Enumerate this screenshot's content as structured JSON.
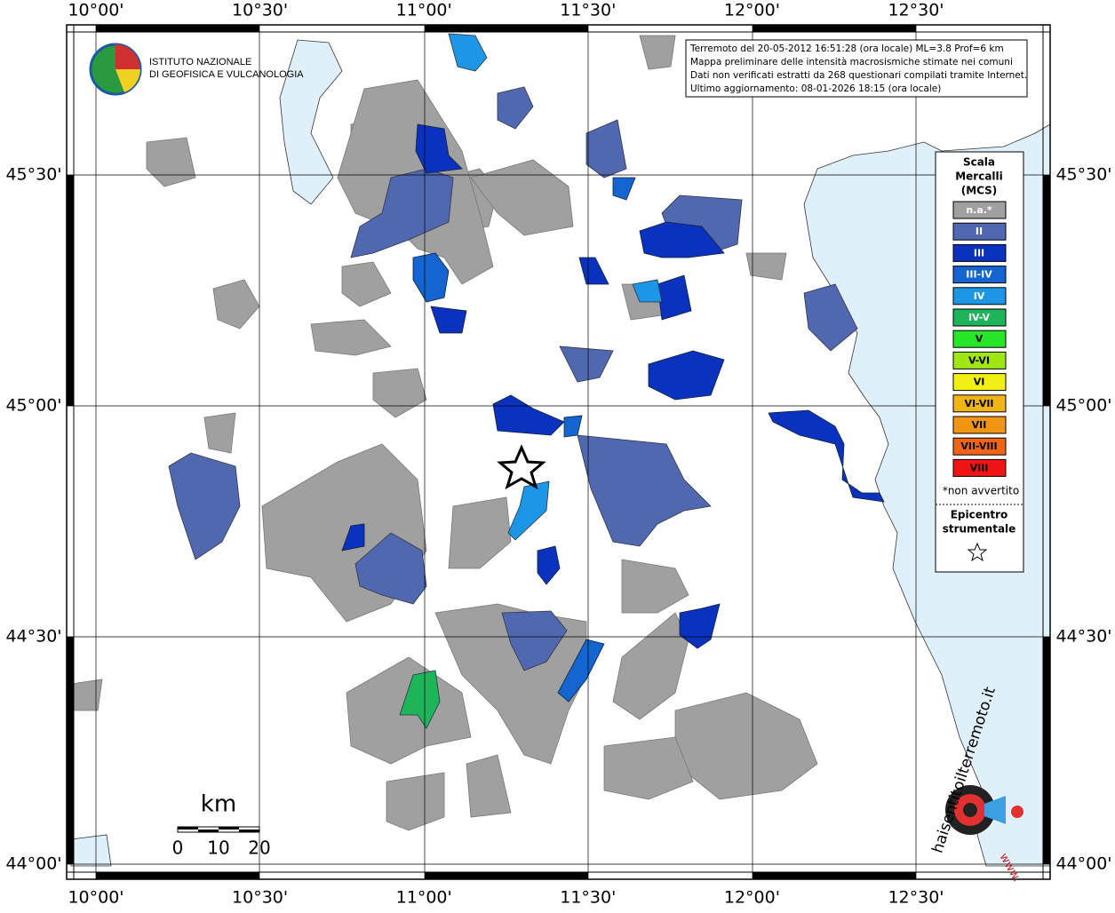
{
  "map": {
    "lon_labels": [
      "10°00'",
      "10°30'",
      "11°00'",
      "11°30'",
      "12°00'",
      "12°30'"
    ],
    "lat_labels": [
      "45°30'",
      "45°00'",
      "44°30'",
      "44°00'"
    ],
    "logo": {
      "line1": "ISTITUTO NAZIONALE",
      "line2": "DI GEOFISICA E VULCANOLOGIA"
    },
    "info": [
      "Terremoto del 20-05-2012 16:51:28 (ora locale) ML=3.8 Prof=6 km",
      "Mappa preliminare delle intensità macrosismiche stimate nei comuni",
      "Dati non verificati estratti da 268 questionari compilati tramite Internet.",
      "Ultimo aggiornamento: 08-01-2026 18:15 (ora locale)"
    ],
    "legend": {
      "title": [
        "Scala",
        "Mercalli",
        "(MCS)"
      ],
      "entries": [
        {
          "label": "n.a.*",
          "color": "#a0a0a0"
        },
        {
          "label": "II",
          "color": "#5068b0"
        },
        {
          "label": "III",
          "color": "#0a32be"
        },
        {
          "label": "III-IV",
          "color": "#1464d2"
        },
        {
          "label": "IV",
          "color": "#1e96e6"
        },
        {
          "label": "IV-V",
          "color": "#1eb45a"
        },
        {
          "label": "V",
          "color": "#28e628"
        },
        {
          "label": "V-VI",
          "color": "#a0e614"
        },
        {
          "label": "VI",
          "color": "#f0f014"
        },
        {
          "label": "VI-VII",
          "color": "#f0b414"
        },
        {
          "label": "VII",
          "color": "#f09614"
        },
        {
          "label": "VII-VIII",
          "color": "#f06414"
        },
        {
          "label": "VIII",
          "color": "#f01414"
        }
      ],
      "note": "*non avvertito",
      "epicenter": [
        "Epicentro",
        "strumentale"
      ]
    },
    "scale": {
      "unit": "km",
      "ticks": [
        "0",
        "10",
        "20"
      ]
    },
    "site_logo": {
      "name": "haisentitoilterremoto.it",
      "prefix": "www."
    }
  }
}
